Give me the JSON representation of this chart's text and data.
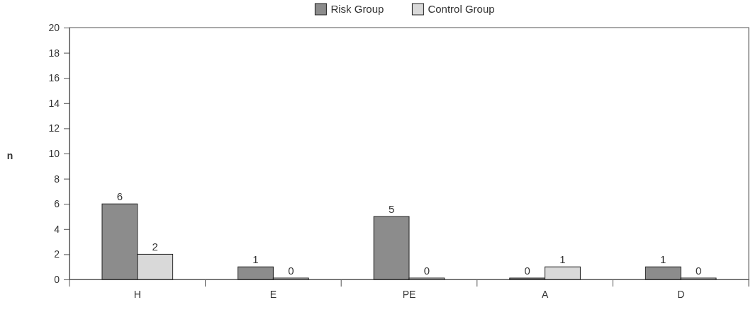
{
  "chart_data": {
    "type": "bar",
    "ylabel": "n",
    "categories": [
      "H",
      "E",
      "PE",
      "A",
      "D"
    ],
    "series": [
      {
        "name": "Risk Group",
        "color": "#8c8c8c",
        "values": [
          6,
          1,
          5,
          0,
          1
        ]
      },
      {
        "name": "Control Group",
        "color": "#d9d9d9",
        "values": [
          2,
          0,
          0,
          1,
          0
        ]
      }
    ],
    "ylim": [
      0,
      20
    ],
    "yticks": [
      0,
      2,
      4,
      6,
      8,
      10,
      12,
      14,
      16,
      18,
      20
    ],
    "legend": "top",
    "data_labels": true,
    "grid": false
  }
}
